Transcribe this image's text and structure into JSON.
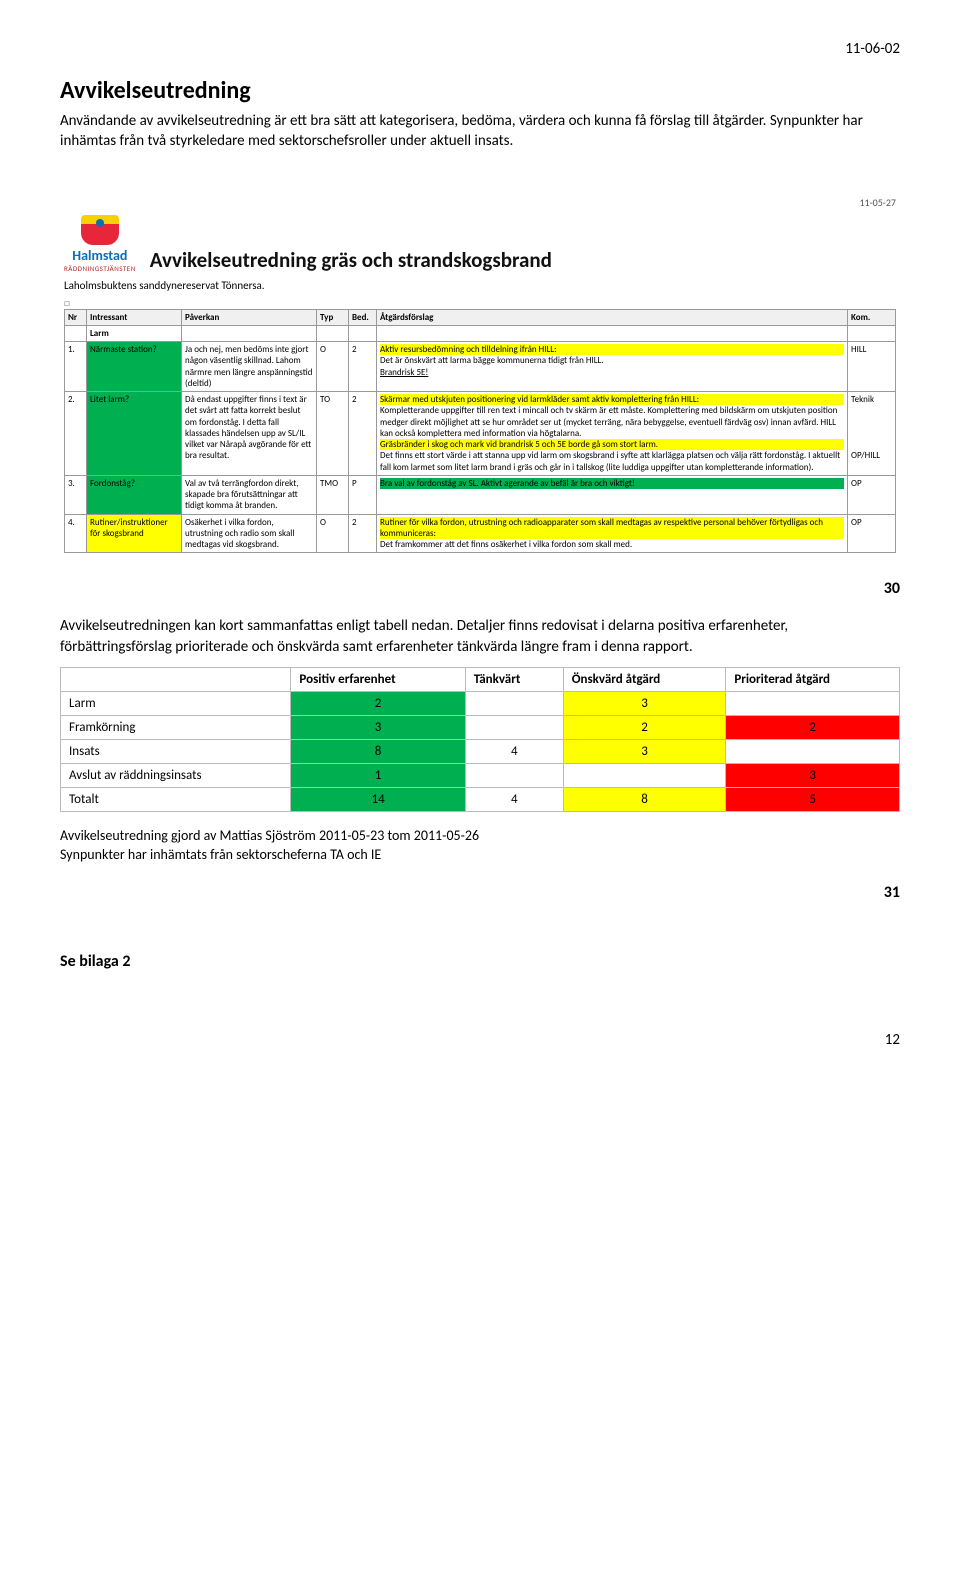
{
  "page": {
    "date": "11-06-02",
    "heading": "Avvikelseutredning",
    "para1": "Användande av avvikelseutredning är ett bra sätt att kategorisera, bedöma, värdera och kunna få förslag till åtgärder. Synpunkter har inhämtas från två styrkeledare med sektorschefsroller under aktuell insats.",
    "fig30": "30",
    "para2": "Avvikelseutredningen kan kort sammanfattas enligt tabell nedan. Detaljer finns redovisat i delarna positiva erfarenheter, förbättringsförslag prioriterade och önskvärda samt erfarenheter tänkvärda längre fram i denna rapport.",
    "fig31": "31",
    "bilaga": "Se bilaga 2",
    "pagenum": "12"
  },
  "embedded": {
    "date": "11-05-27",
    "logo_city": "Halmstad",
    "logo_sub": "RÄDDNINGSTJÄNSTEN",
    "title": "Avvikelseutredning gräs och strandskogsbrand",
    "subtitle": "Laholmsbuktens sanddynereservat Tönnersa.",
    "square": "□",
    "footer_line1": "Avvikelseutredning gjord av Mattias Sjöström 2011-05-23 tom 2011-05-26",
    "footer_line2": "Synpunkter har inhämtats från sektorscheferna TA och IE"
  },
  "mainTable": {
    "headers": [
      "Nr",
      "Intressant",
      "Påverkan",
      "Typ",
      "Bed.",
      "Åtgärdsförslag",
      "Kom."
    ],
    "subhead": "Larm",
    "rows": [
      {
        "nr": "1.",
        "intr": {
          "text": "Närmaste station?",
          "class": "hl-green"
        },
        "pav": {
          "text": "Ja och nej, men bedöms inte gjort någon väsentlig skillnad. Lahom närmre men längre anspänningstid (deltid)"
        },
        "typ": "O",
        "bed": "2",
        "atg": [
          {
            "text": "Aktiv resursbedömning och tilldelning ifrån HILL:",
            "class": "hl-yellow"
          },
          {
            "text": "Det är önskvärt att larma bägge kommunerna tidigt från HILL."
          },
          {
            "text": "Brandrisk 5E!",
            "underline": true
          }
        ],
        "kom": "HILL"
      },
      {
        "nr": "2.",
        "intr": {
          "text": "Litet larm?",
          "class": "hl-green"
        },
        "pav": {
          "text": "Då endast uppgifter finns i text är det svårt att fatta korrekt beslut om fordonståg. I detta fall klassades händelsen upp av SL/IL vilket var Nårapå avgörande för ett bra resultat."
        },
        "typ": "TO",
        "bed": "2",
        "atg": [
          {
            "text": "Skärmar med utskjuten positionering vid larmkläder samt aktiv komplettering från HILL:",
            "class": "hl-yellow"
          },
          {
            "text": "Kompletterande uppgifter till ren text i mincall och tv skärm är ett måste. Komplettering med bildskärm om utskjuten position medger direkt möjlighet att se hur området ser ut (mycket terräng, nära bebyggelse, eventuell färdväg osv) innan avfärd. HILL kan också komplettera med information via högtalarna."
          },
          {
            "text": "Gräsbränder i skog och mark vid brandrisk 5 och 5E borde gå som stort larm.",
            "class": "hl-yellow"
          },
          {
            "text": "Det finns ett stort värde i att stanna upp vid larm om skogsbrand i syfte att klarlägga platsen och välja rätt fordonståg. I aktuellt fall kom larmet som litet larm brand i gräs och går in i tallskog (lite luddiga uppgifter utan kompletterande information)."
          }
        ],
        "kom": "Teknik\n\n\n\n\nOP/HILL"
      },
      {
        "nr": "3.",
        "intr": {
          "text": "Fordonståg?",
          "class": "hl-green"
        },
        "pav": {
          "text": "Val av två terrängfordon direkt, skapade bra förutsättningar att tidigt komma åt branden."
        },
        "typ": "TMO",
        "bed": "P",
        "atg": [
          {
            "text": "Bra val av fordonståg av SL. Aktivt agerande av befäl är bra och viktigt!",
            "class": "hl-green"
          }
        ],
        "kom": "OP"
      },
      {
        "nr": "4.",
        "intr": {
          "text": "Rutiner/instruktioner för skogsbrand",
          "class": "hl-yellow"
        },
        "pav": {
          "text": "Osäkerhet i vilka fordon, utrustning och radio som skall medtagas vid skogsbrand."
        },
        "typ": "O",
        "bed": "2",
        "atg": [
          {
            "text": "Rutiner för vilka fordon, utrustning och radioapparater som skall medtagas av respektive personal behöver förtydligas och kommuniceras:",
            "class": "hl-yellow"
          },
          {
            "text": "Det framkommer att det finns osäkerhet i vilka fordon som skall med."
          }
        ],
        "kom": "OP"
      }
    ]
  },
  "summaryTable": {
    "headers": [
      "",
      "Positiv erfarenhet",
      "Tänkvärt",
      "Önskvärd åtgärd",
      "Prioriterad åtgärd"
    ],
    "rows": [
      {
        "label": "Larm",
        "cells": [
          {
            "v": "2",
            "c": "s-green"
          },
          {
            "v": "",
            "c": ""
          },
          {
            "v": "3",
            "c": "s-yellow"
          },
          {
            "v": "",
            "c": ""
          }
        ]
      },
      {
        "label": "Framkörning",
        "cells": [
          {
            "v": "3",
            "c": "s-green"
          },
          {
            "v": "",
            "c": ""
          },
          {
            "v": "2",
            "c": "s-yellow"
          },
          {
            "v": "2",
            "c": "s-red"
          }
        ]
      },
      {
        "label": "Insats",
        "cells": [
          {
            "v": "8",
            "c": "s-green"
          },
          {
            "v": "4",
            "c": ""
          },
          {
            "v": "3",
            "c": "s-yellow"
          },
          {
            "v": "",
            "c": ""
          }
        ]
      },
      {
        "label": "Avslut av räddningsinsats",
        "cells": [
          {
            "v": "1",
            "c": "s-green"
          },
          {
            "v": "",
            "c": ""
          },
          {
            "v": "",
            "c": ""
          },
          {
            "v": "3",
            "c": "s-red"
          }
        ]
      },
      {
        "label": "Totalt",
        "cells": [
          {
            "v": "14",
            "c": "s-green"
          },
          {
            "v": "4",
            "c": ""
          },
          {
            "v": "8",
            "c": "s-yellow"
          },
          {
            "v": "5",
            "c": "s-red"
          }
        ]
      }
    ]
  }
}
